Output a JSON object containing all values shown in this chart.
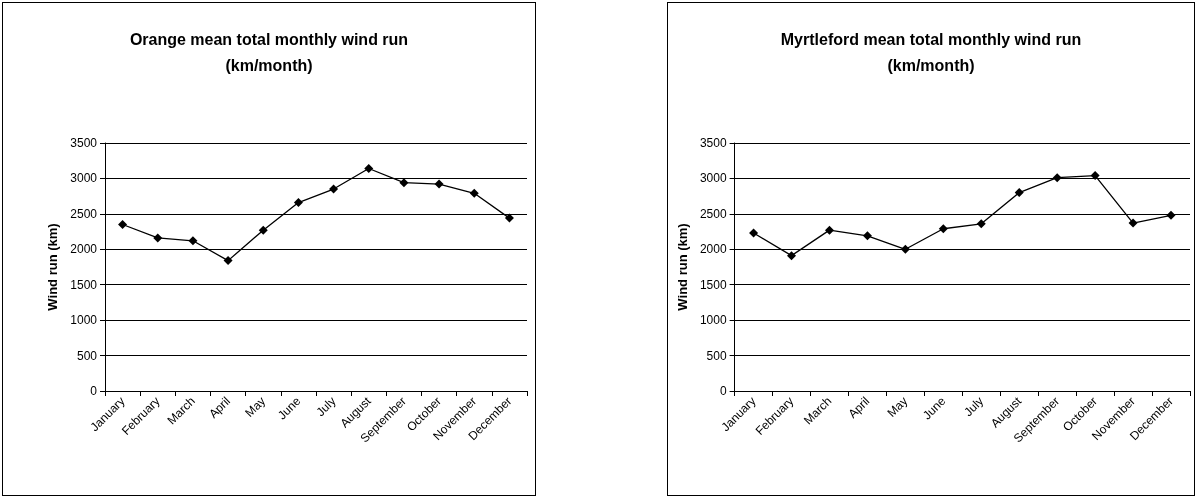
{
  "chart_data": [
    {
      "type": "line",
      "title": "Orange mean total monthly wind run\n(km/month)",
      "ylabel": "Wind run (km)",
      "categories": [
        "January",
        "February",
        "March",
        "April",
        "May",
        "June",
        "July",
        "August",
        "September",
        "October",
        "November",
        "December"
      ],
      "series": [
        {
          "color": "#000000",
          "values": [
            2350,
            2160,
            2120,
            1840,
            2270,
            2660,
            2850,
            3140,
            2940,
            2920,
            2790,
            2440
          ]
        }
      ],
      "ylim": [
        0,
        3500
      ],
      "yticks": [
        0,
        500,
        1000,
        1500,
        2000,
        2500,
        3000,
        3500
      ],
      "grid": "y",
      "marker": "diamond",
      "line_style": "solid"
    },
    {
      "type": "line",
      "title": "Myrtleford mean total monthly wind run\n(km/month)",
      "ylabel": "Wind run (km)",
      "categories": [
        "January",
        "February",
        "March",
        "April",
        "May",
        "June",
        "July",
        "August",
        "September",
        "October",
        "November",
        "December"
      ],
      "series": [
        {
          "color": "#000000",
          "values": [
            2230,
            1910,
            2270,
            2190,
            2000,
            2290,
            2360,
            2800,
            3010,
            3040,
            2370,
            2480
          ]
        }
      ],
      "ylim": [
        0,
        3500
      ],
      "yticks": [
        0,
        500,
        1000,
        1500,
        2000,
        2500,
        3000,
        3500
      ],
      "grid": "y",
      "marker": "diamond",
      "line_style": "solid"
    }
  ]
}
